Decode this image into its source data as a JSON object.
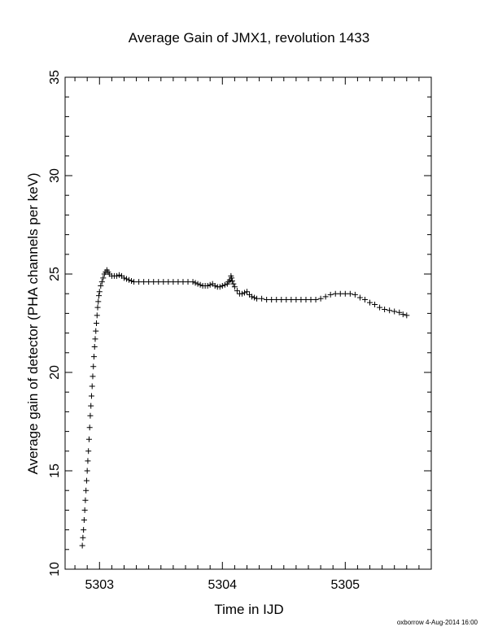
{
  "chart_data": {
    "type": "scatter",
    "title": "Average Gain of JMX1, revolution 1433",
    "xlabel": "Time in IJD",
    "ylabel": "Average gain of detector (PHA channels per keV)",
    "xlim": [
      5302.72,
      5305.7
    ],
    "ylim": [
      10,
      35
    ],
    "x_ticks": [
      5303,
      5304,
      5305
    ],
    "y_ticks": [
      10,
      15,
      20,
      25,
      30,
      35
    ],
    "marker": "+",
    "grid": false,
    "series": [
      {
        "name": "",
        "points": [
          [
            5302.86,
            11.2
          ],
          [
            5302.865,
            11.6
          ],
          [
            5302.87,
            12.0
          ],
          [
            5302.875,
            12.5
          ],
          [
            5302.88,
            13.0
          ],
          [
            5302.885,
            13.5
          ],
          [
            5302.89,
            14.0
          ],
          [
            5302.895,
            14.5
          ],
          [
            5302.9,
            15.0
          ],
          [
            5302.905,
            15.5
          ],
          [
            5302.91,
            16.0
          ],
          [
            5302.915,
            16.6
          ],
          [
            5302.92,
            17.2
          ],
          [
            5302.925,
            17.8
          ],
          [
            5302.93,
            18.3
          ],
          [
            5302.935,
            18.8
          ],
          [
            5302.94,
            19.3
          ],
          [
            5302.945,
            19.8
          ],
          [
            5302.95,
            20.3
          ],
          [
            5302.955,
            20.8
          ],
          [
            5302.96,
            21.3
          ],
          [
            5302.965,
            21.7
          ],
          [
            5302.97,
            22.1
          ],
          [
            5302.975,
            22.5
          ],
          [
            5302.98,
            22.9
          ],
          [
            5302.985,
            23.3
          ],
          [
            5302.99,
            23.6
          ],
          [
            5302.995,
            23.9
          ],
          [
            5303.0,
            24.1
          ],
          [
            5303.01,
            24.4
          ],
          [
            5303.02,
            24.6
          ],
          [
            5303.03,
            24.8
          ],
          [
            5303.04,
            25.0
          ],
          [
            5303.05,
            25.1
          ],
          [
            5303.06,
            25.2
          ],
          [
            5303.07,
            25.1
          ],
          [
            5303.08,
            25.0
          ],
          [
            5303.1,
            24.9
          ],
          [
            5303.12,
            24.9
          ],
          [
            5303.14,
            24.9
          ],
          [
            5303.16,
            24.95
          ],
          [
            5303.18,
            24.9
          ],
          [
            5303.2,
            24.8
          ],
          [
            5303.22,
            24.75
          ],
          [
            5303.24,
            24.7
          ],
          [
            5303.26,
            24.65
          ],
          [
            5303.28,
            24.6
          ],
          [
            5303.32,
            24.6
          ],
          [
            5303.36,
            24.6
          ],
          [
            5303.4,
            24.6
          ],
          [
            5303.44,
            24.6
          ],
          [
            5303.48,
            24.6
          ],
          [
            5303.52,
            24.6
          ],
          [
            5303.56,
            24.6
          ],
          [
            5303.6,
            24.6
          ],
          [
            5303.64,
            24.6
          ],
          [
            5303.68,
            24.6
          ],
          [
            5303.72,
            24.6
          ],
          [
            5303.76,
            24.6
          ],
          [
            5303.78,
            24.55
          ],
          [
            5303.8,
            24.5
          ],
          [
            5303.82,
            24.45
          ],
          [
            5303.84,
            24.4
          ],
          [
            5303.86,
            24.4
          ],
          [
            5303.88,
            24.4
          ],
          [
            5303.9,
            24.45
          ],
          [
            5303.92,
            24.5
          ],
          [
            5303.94,
            24.4
          ],
          [
            5303.96,
            24.35
          ],
          [
            5303.98,
            24.35
          ],
          [
            5304.0,
            24.4
          ],
          [
            5304.02,
            24.45
          ],
          [
            5304.04,
            24.5
          ],
          [
            5304.05,
            24.6
          ],
          [
            5304.06,
            24.7
          ],
          [
            5304.07,
            24.9
          ],
          [
            5304.075,
            24.8
          ],
          [
            5304.08,
            24.65
          ],
          [
            5304.09,
            24.5
          ],
          [
            5304.1,
            24.35
          ],
          [
            5304.12,
            24.15
          ],
          [
            5304.14,
            24.0
          ],
          [
            5304.16,
            24.0
          ],
          [
            5304.18,
            24.05
          ],
          [
            5304.2,
            24.1
          ],
          [
            5304.22,
            23.95
          ],
          [
            5304.24,
            23.85
          ],
          [
            5304.26,
            23.8
          ],
          [
            5304.28,
            23.75
          ],
          [
            5304.32,
            23.75
          ],
          [
            5304.36,
            23.7
          ],
          [
            5304.4,
            23.7
          ],
          [
            5304.44,
            23.7
          ],
          [
            5304.48,
            23.7
          ],
          [
            5304.52,
            23.7
          ],
          [
            5304.56,
            23.7
          ],
          [
            5304.6,
            23.7
          ],
          [
            5304.64,
            23.7
          ],
          [
            5304.68,
            23.7
          ],
          [
            5304.72,
            23.7
          ],
          [
            5304.76,
            23.7
          ],
          [
            5304.8,
            23.75
          ],
          [
            5304.84,
            23.85
          ],
          [
            5304.88,
            23.95
          ],
          [
            5304.92,
            24.0
          ],
          [
            5304.96,
            24.0
          ],
          [
            5305.0,
            24.0
          ],
          [
            5305.04,
            24.0
          ],
          [
            5305.08,
            23.95
          ],
          [
            5305.12,
            23.8
          ],
          [
            5305.16,
            23.7
          ],
          [
            5305.2,
            23.55
          ],
          [
            5305.24,
            23.45
          ],
          [
            5305.28,
            23.3
          ],
          [
            5305.32,
            23.2
          ],
          [
            5305.36,
            23.15
          ],
          [
            5305.4,
            23.1
          ],
          [
            5305.44,
            23.05
          ],
          [
            5305.47,
            22.95
          ],
          [
            5305.5,
            22.9
          ]
        ]
      }
    ]
  },
  "footer": "oxborrow  4-Aug-2014 16:00"
}
